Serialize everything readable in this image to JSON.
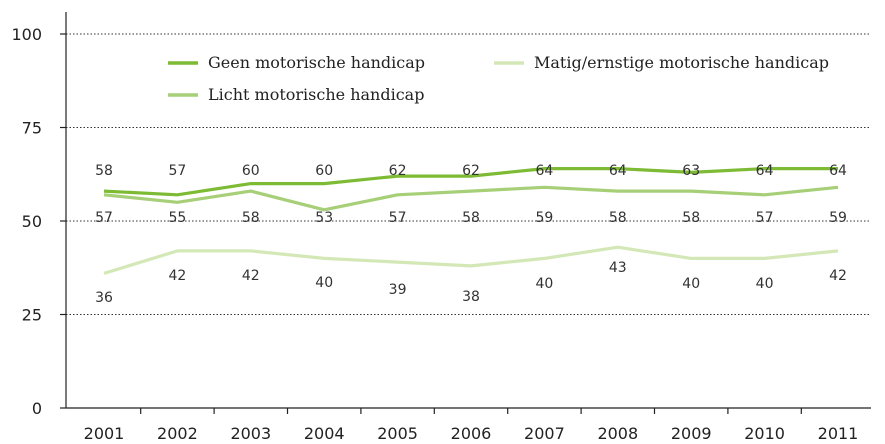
{
  "chart_data": {
    "type": "line",
    "x": [
      "2001",
      "2002",
      "2003",
      "2004",
      "2005",
      "2006",
      "2007",
      "2008",
      "2009",
      "2010",
      "2011"
    ],
    "ylim": [
      0,
      100
    ],
    "yticks": [
      0,
      25,
      50,
      75,
      100
    ],
    "grid": "horizontal dotted",
    "legend": "top",
    "series": [
      {
        "name": "Geen motorische handicap",
        "color": "#7dbb35",
        "values": [
          58,
          57,
          60,
          60,
          62,
          62,
          64,
          64,
          63,
          64,
          64
        ],
        "labels": [
          "58",
          "57",
          "60",
          "60",
          "62",
          "62",
          "64",
          "64",
          "63",
          "64",
          "64"
        ]
      },
      {
        "name": "Licht motorische handicap",
        "color": "#a6cf78",
        "values": [
          57,
          55,
          58,
          53,
          57,
          58,
          59,
          58,
          58,
          57,
          59
        ],
        "labels": [
          "57",
          "55",
          "58",
          "53",
          "57",
          "58",
          "59",
          "58",
          "58",
          "57",
          "59"
        ]
      },
      {
        "name": "Matig/ernstige motorische handicap",
        "color": "#d3e8b6",
        "values": [
          36,
          42,
          42,
          40,
          39,
          38,
          40,
          43,
          40,
          40,
          42
        ],
        "labels": [
          "36",
          "42",
          "42",
          "40",
          "39",
          "38",
          "40",
          "43",
          "40",
          "40",
          "42"
        ]
      }
    ]
  }
}
